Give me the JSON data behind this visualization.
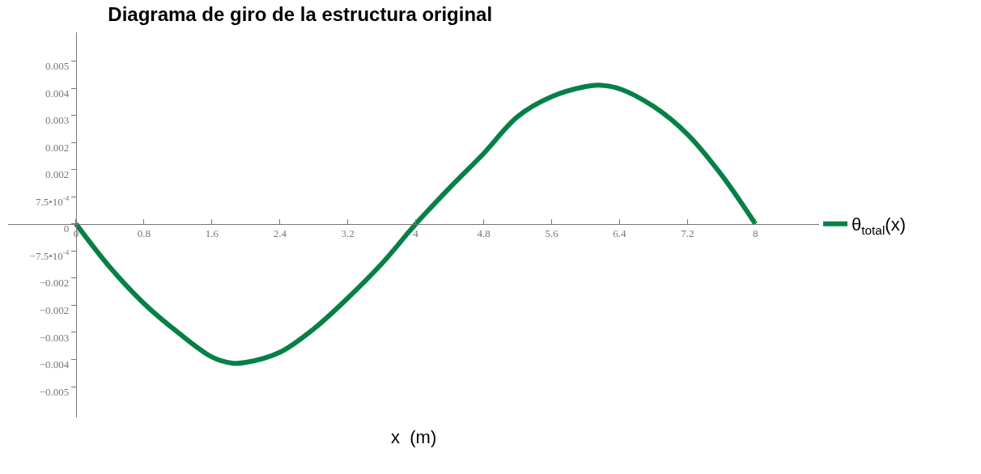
{
  "chart_data": {
    "type": "line",
    "title": "Diagrama de giro de la estructura original",
    "xlabel": "x  (m)",
    "x": [
      0,
      0.4,
      0.8,
      1.2,
      1.6,
      1.84,
      2.0,
      2.4,
      2.8,
      3.2,
      3.6,
      4.0,
      4.4,
      4.8,
      5.2,
      5.6,
      6.0,
      6.16,
      6.4,
      6.8,
      7.2,
      7.6,
      8.0
    ],
    "series": [
      {
        "name": "θ$_{total}$(x)",
        "color": "#068046",
        "values": [
          0,
          -0.0012,
          -0.0022,
          -0.003,
          -0.00368,
          -0.00385,
          -0.00383,
          -0.00355,
          -0.0029,
          -0.00205,
          -0.0011,
          0,
          0.001,
          0.00195,
          0.00297,
          0.00352,
          0.0038,
          0.00384,
          0.00374,
          0.00325,
          0.00248,
          0.00136,
          0
        ]
      }
    ],
    "xlim": [
      -0.8,
      8.75
    ],
    "ylim": [
      -0.00535,
      0.0053
    ],
    "xticks": [
      0,
      0.8,
      1.6,
      2.4,
      3.2,
      4,
      4.8,
      5.6,
      6.4,
      7.2,
      8
    ],
    "yticks": [
      {
        "value": 0.0045,
        "label": "0.005"
      },
      {
        "value": 0.00375,
        "label": "0.004"
      },
      {
        "value": 0.003,
        "label": "0.003"
      },
      {
        "value": 0.00225,
        "label": "0.002"
      },
      {
        "value": 0.0015,
        "label": "0.002"
      },
      {
        "value": 0.00075,
        "label": "7.5•10$^{-4}$"
      },
      0,
      {
        "value": -0.00075,
        "label": "−7.5•10$^{-4}$"
      },
      {
        "value": -0.0015,
        "label": "−0.002"
      },
      {
        "value": -0.00225,
        "label": "−0.002"
      },
      {
        "value": -0.003,
        "label": "−0.003"
      },
      {
        "value": -0.00375,
        "label": "−0.004"
      },
      {
        "value": -0.0045,
        "label": "−0.005"
      }
    ],
    "legend": "right",
    "marker": "none",
    "line_style": "solid"
  }
}
